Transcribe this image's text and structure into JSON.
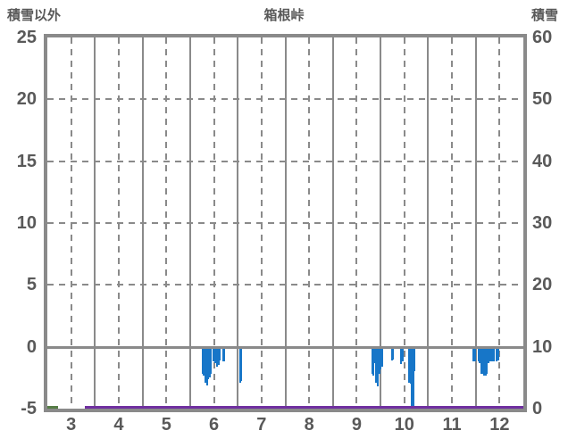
{
  "header": {
    "left_axis_label": "積雪以外",
    "title": "箱根峠",
    "right_axis_label": "積雪"
  },
  "colors": {
    "frame": "#8a8a8a",
    "grid": "#8a8a8a",
    "text": "#595959",
    "bar": "#1776c8",
    "snow_line": "#7030a0",
    "green_line": "#567d46",
    "background": "#ffffff"
  },
  "chart_data": {
    "type": "bar",
    "title": "箱根峠",
    "left_axis": {
      "label": "積雪以外",
      "ticks": [
        25,
        20,
        15,
        10,
        5,
        0,
        -5
      ],
      "min": -5,
      "max": 25
    },
    "right_axis": {
      "label": "積雪",
      "ticks": [
        60,
        50,
        40,
        30,
        20,
        10,
        0
      ],
      "min": 0,
      "max": 60
    },
    "x_axis": {
      "tick_labels": [
        3,
        4,
        5,
        6,
        7,
        8,
        9,
        10,
        11,
        12
      ],
      "min": 2.5,
      "max": 12.5,
      "unit": "month"
    },
    "grid": {
      "h_dashed_at_left_values": [
        20,
        15,
        10,
        5
      ],
      "zero_line_left_value": 0,
      "v_solid_at": [
        3.5,
        4.5,
        5.5,
        6.5,
        7.5,
        8.5,
        9.5,
        10.5,
        11.5
      ],
      "v_dashed_at": [
        3,
        4,
        5,
        6,
        7,
        8,
        9,
        10,
        11,
        12
      ]
    },
    "series": [
      {
        "name": "sekisetsu-igai-daily-bars",
        "type": "bar",
        "axis": "left",
        "color": "#1776c8",
        "points": [
          [
            5.76,
            -2.2
          ],
          [
            5.79,
            -2.3
          ],
          [
            5.82,
            -2.9
          ],
          [
            5.85,
            -3.1
          ],
          [
            5.88,
            -2.6
          ],
          [
            5.91,
            -2.5
          ],
          [
            5.94,
            -2.2
          ],
          [
            5.99,
            -1.2
          ],
          [
            6.02,
            -1.3
          ],
          [
            6.07,
            -1.6
          ],
          [
            6.1,
            -1.5
          ],
          [
            6.13,
            -1.1
          ],
          [
            6.19,
            -1.2
          ],
          [
            6.22,
            -1.2
          ],
          [
            6.55,
            -2.9
          ],
          [
            6.58,
            -2.8
          ],
          [
            9.32,
            -2.2
          ],
          [
            9.35,
            -2.3
          ],
          [
            9.38,
            -1.3
          ],
          [
            9.41,
            -2.9
          ],
          [
            9.44,
            -3.2
          ],
          [
            9.47,
            -2.2
          ],
          [
            9.5,
            -1.8
          ],
          [
            9.53,
            -1.6
          ],
          [
            9.74,
            -1.1
          ],
          [
            9.77,
            -1.0
          ],
          [
            9.93,
            -1.4
          ],
          [
            9.96,
            -1.2
          ],
          [
            10.1,
            -2.9
          ],
          [
            10.13,
            -3.0
          ],
          [
            10.16,
            -5.0
          ],
          [
            10.19,
            -4.8
          ],
          [
            10.22,
            -2.0
          ],
          [
            11.45,
            -1.2
          ],
          [
            11.48,
            -1.2
          ],
          [
            11.56,
            -1.2
          ],
          [
            11.59,
            -1.3
          ],
          [
            11.62,
            -2.2
          ],
          [
            11.65,
            -2.2
          ],
          [
            11.68,
            -2.3
          ],
          [
            11.71,
            -2.3
          ],
          [
            11.74,
            -2.2
          ],
          [
            11.77,
            -1.3
          ],
          [
            11.8,
            -1.2
          ],
          [
            11.83,
            -1.2
          ],
          [
            11.86,
            -1.2
          ],
          [
            11.89,
            -1.2
          ],
          [
            11.94,
            -1.2
          ],
          [
            11.97,
            -1.1
          ]
        ]
      },
      {
        "name": "sekisetsu-line",
        "type": "line",
        "axis": "right",
        "color": "#7030a0",
        "value": 0,
        "x_start": 3.28,
        "x_end": 12.5
      },
      {
        "name": "green-line-segment",
        "type": "line",
        "axis": "right",
        "color": "#567d46",
        "value": 0,
        "x_start": 2.5,
        "x_end": 2.72
      }
    ]
  }
}
